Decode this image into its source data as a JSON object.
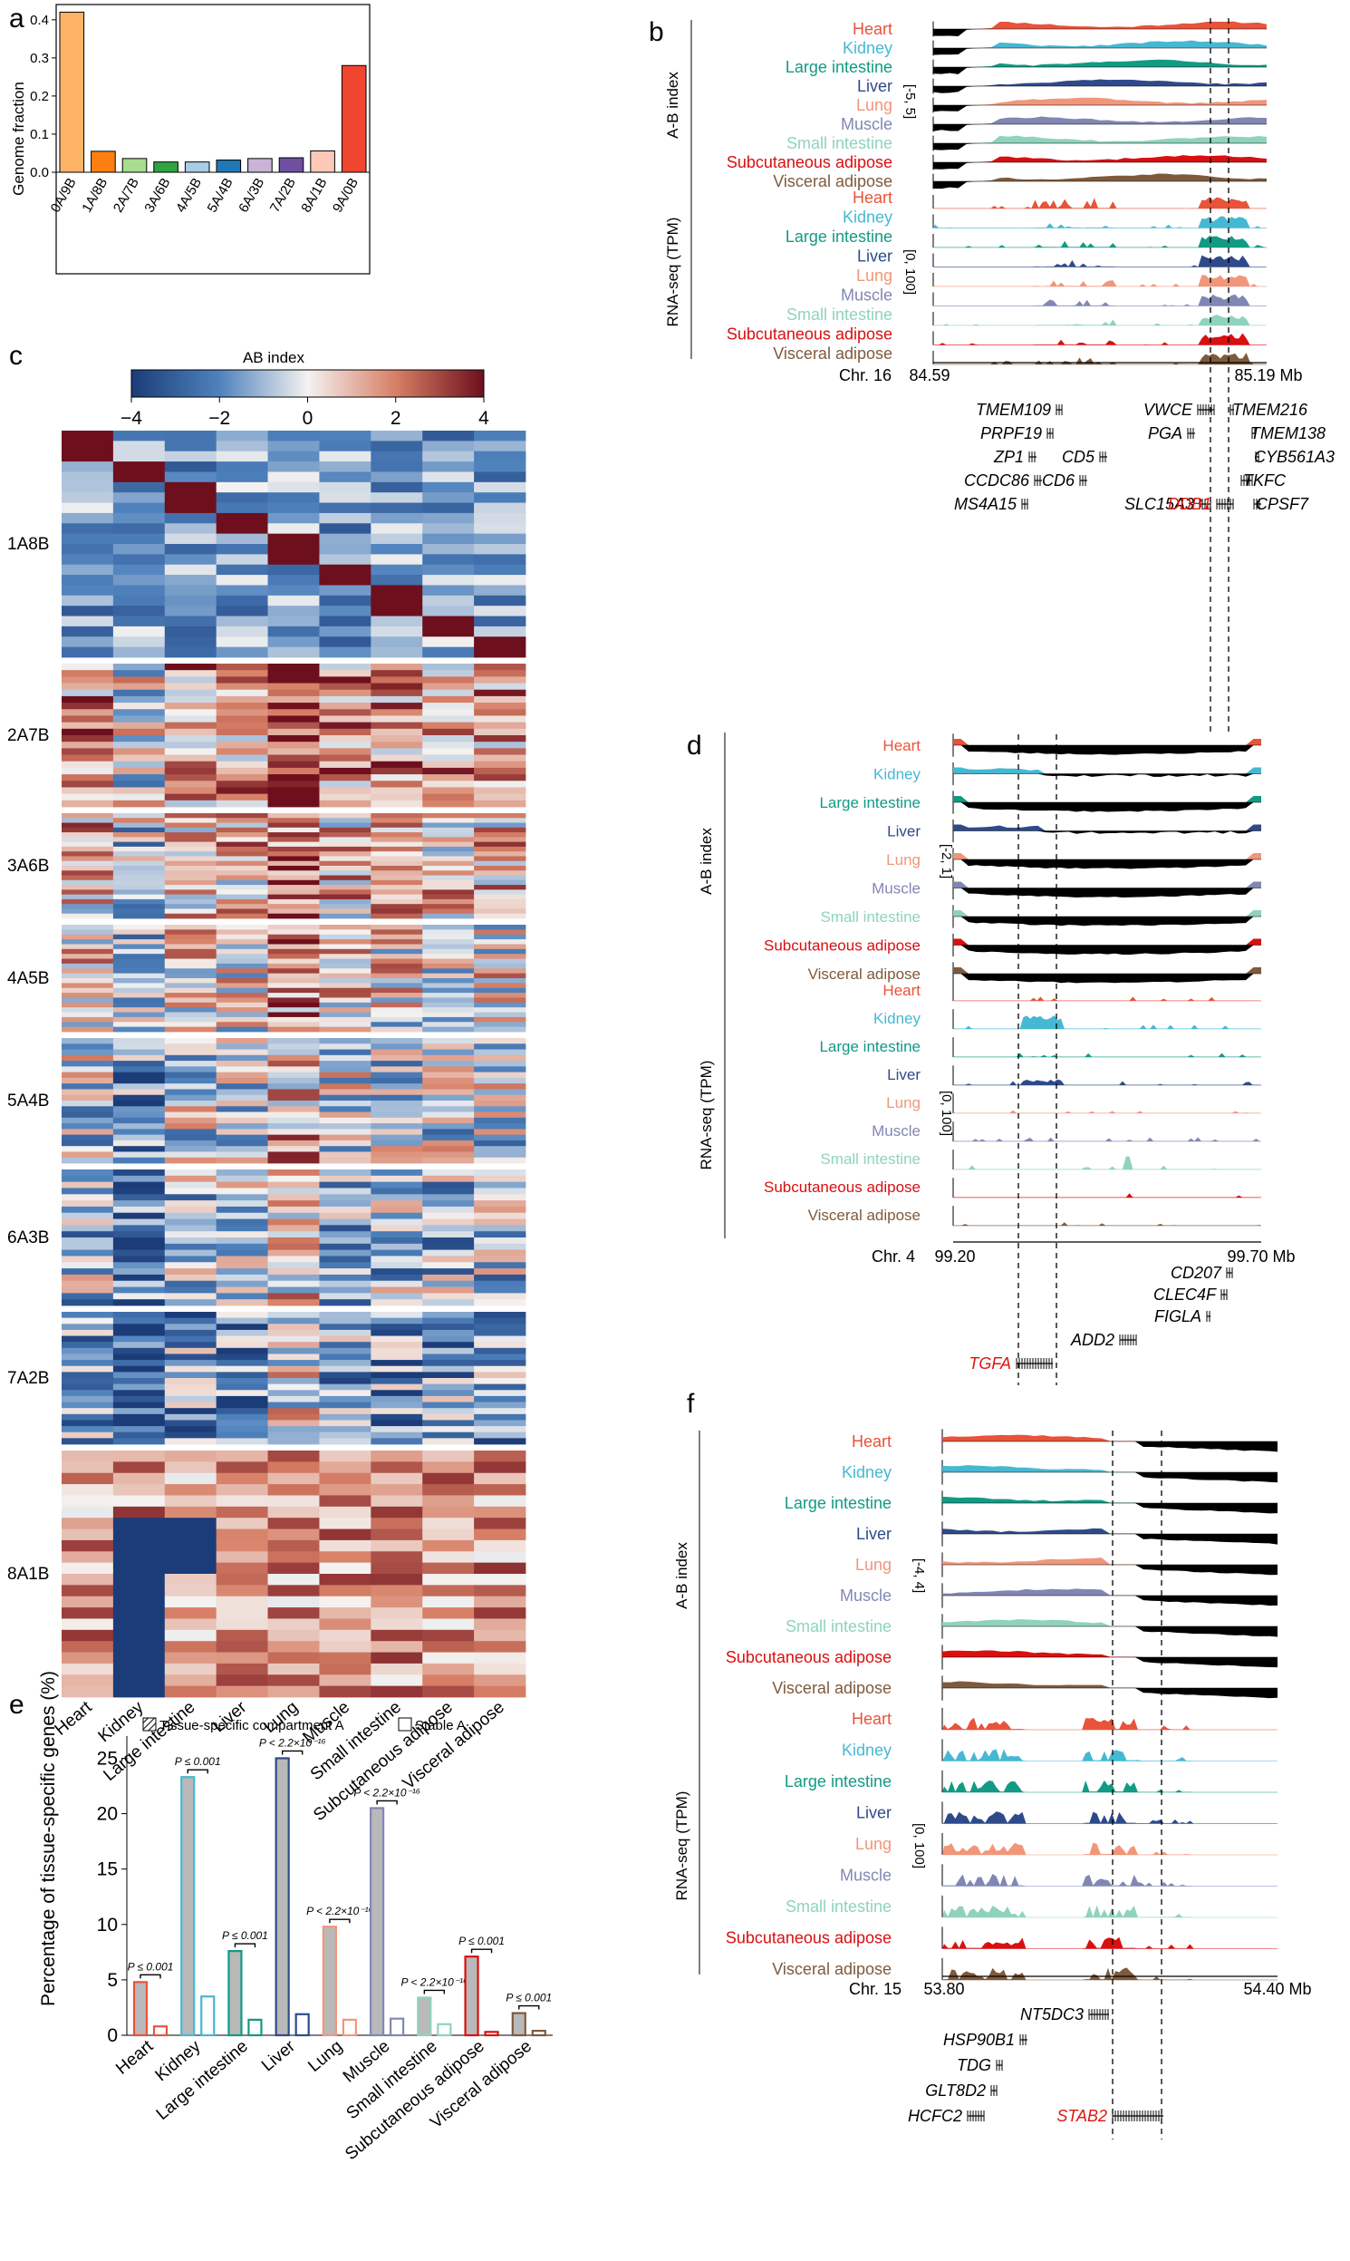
{
  "panel_labels": [
    "a",
    "b",
    "c",
    "d",
    "e",
    "f"
  ],
  "tissues": [
    "Heart",
    "Kidney",
    "Large intestine",
    "Liver",
    "Lung",
    "Muscle",
    "Small intestine",
    "Subcutaneous adipose",
    "Visceral adipose"
  ],
  "tissue_colors": {
    "Heart": "#e8533a",
    "Kidney": "#45b8d3",
    "Large intestine": "#129a84",
    "Liver": "#2e4a8a",
    "Lung": "#f1967a",
    "Muscle": "#8187b4",
    "Small intestine": "#8fd3bd",
    "Subcutaneous adipose": "#d90f10",
    "Visceral adipose": "#7e5a3c"
  },
  "chart_data": [
    {
      "id": "a",
      "type": "bar",
      "title": "",
      "xlabel": "",
      "ylabel": "Genome fraction",
      "ylim": [
        0,
        0.44
      ],
      "yticks": [
        "0.0",
        "0.1",
        "0.2",
        "0.3",
        "0.4"
      ],
      "categories": [
        "0A/9B",
        "1A/8B",
        "2A/7B",
        "3A/6B",
        "4A/5B",
        "5A/4B",
        "6A/3B",
        "7A/2B",
        "8A/1B",
        "9A/0B"
      ],
      "values": [
        0.42,
        0.055,
        0.036,
        0.027,
        0.027,
        0.032,
        0.036,
        0.038,
        0.056,
        0.28
      ],
      "colors": [
        "#fdb366",
        "#fd7f11",
        "#a8dc8f",
        "#2fa541",
        "#a9cce4",
        "#2178b5",
        "#c9b3d6",
        "#6f4fa0",
        "#fcc8b8",
        "#f0452f"
      ]
    },
    {
      "id": "b",
      "type": "area",
      "chromosome": "Chr. 16",
      "x_start": "84.59",
      "x_end": "85.19 Mb",
      "ab_ylabel": "A-B index",
      "ab_range": "[-5, 5]",
      "rna_ylabel": "RNA-seq (TPM)",
      "rna_range": "[0, 100]",
      "genes": [
        {
          "name": "TMEM109",
          "highlight": false
        },
        {
          "name": "PRPF19",
          "highlight": false
        },
        {
          "name": "ZP1",
          "highlight": false
        },
        {
          "name": "CCDC86",
          "highlight": false
        },
        {
          "name": "MS4A15",
          "highlight": false
        },
        {
          "name": "CD5",
          "highlight": false
        },
        {
          "name": "CD6",
          "highlight": false
        },
        {
          "name": "SLC15A3",
          "highlight": false
        },
        {
          "name": "VWCE",
          "highlight": false
        },
        {
          "name": "PGA",
          "highlight": false
        },
        {
          "name": "DDB1",
          "highlight": true
        },
        {
          "name": "TMEM216",
          "highlight": false
        },
        {
          "name": "TMEM138",
          "highlight": false
        },
        {
          "name": "CYB561A3",
          "highlight": false
        },
        {
          "name": "TKFC",
          "highlight": false
        },
        {
          "name": "CPSF7",
          "highlight": false
        }
      ]
    },
    {
      "id": "c",
      "type": "heatmap",
      "title": "AB index",
      "colorbar_range": [
        -4,
        4
      ],
      "colorbar_ticks": [
        "−4",
        "−2",
        "0",
        "2",
        "4"
      ],
      "columns": [
        "Heart",
        "Kidney",
        "Large intestine",
        "Liver",
        "Lung",
        "Muscle",
        "Small intestine",
        "Subcutaneous adipose",
        "Visceral adipose"
      ],
      "row_groups": [
        "1A8B",
        "2A7B",
        "3A6B",
        "4A5B",
        "5A4B",
        "6A3B",
        "7A2B",
        "8A1B"
      ]
    },
    {
      "id": "d",
      "type": "area",
      "chromosome": "Chr. 4",
      "x_start": "99.20",
      "x_end": "99.70 Mb",
      "ab_ylabel": "A-B index",
      "ab_range": "[-2, 1]",
      "rna_ylabel": "RNA-seq (TPM)",
      "rna_range": "[0, 100]",
      "genes": [
        {
          "name": "CD207",
          "highlight": false
        },
        {
          "name": "CLEC4F",
          "highlight": false
        },
        {
          "name": "FIGLA",
          "highlight": false
        },
        {
          "name": "ADD2",
          "highlight": false
        },
        {
          "name": "TGFA",
          "highlight": true
        }
      ]
    },
    {
      "id": "e",
      "type": "bar",
      "ylabel": "Percentage of tissue-specific genes (%)",
      "ylim": [
        0,
        27
      ],
      "yticks": [
        "0",
        "5",
        "10",
        "15",
        "20",
        "25"
      ],
      "legend": [
        "Tissue-specific compartment A",
        "Stable A"
      ],
      "categories": [
        "Heart",
        "Kidney",
        "Large intestine",
        "Liver",
        "Lung",
        "Muscle",
        "Small intestine",
        "Subcutaneous adipose",
        "Visceral adipose"
      ],
      "series": [
        {
          "name": "Tissue-specific compartment A",
          "values": [
            4.8,
            23.3,
            7.6,
            25.0,
            9.8,
            20.5,
            3.4,
            7.1,
            2.0
          ]
        },
        {
          "name": "Stable A",
          "values": [
            0.8,
            3.5,
            1.4,
            1.9,
            1.4,
            1.5,
            1.0,
            0.3,
            0.4
          ]
        }
      ],
      "pvalues": [
        "P ≤ 0.001",
        "P ≤ 0.001",
        "P ≤ 0.001",
        "P < 2.2×10⁻¹⁶",
        "P < 2.2×10⁻¹⁶",
        "P < 2.2×10⁻¹⁶",
        "P < 2.2×10⁻¹⁶",
        "P ≤ 0.001",
        "P ≤ 0.001"
      ]
    },
    {
      "id": "f",
      "type": "area",
      "chromosome": "Chr. 15",
      "x_start": "53.80",
      "x_end": "54.40 Mb",
      "ab_ylabel": "A-B index",
      "ab_range": "[-4, 4]",
      "rna_ylabel": "RNA-seq (TPM)",
      "rna_range": "[0, 100]",
      "genes": [
        {
          "name": "NT5DC3",
          "highlight": false
        },
        {
          "name": "HSP90B1",
          "highlight": false
        },
        {
          "name": "TDG",
          "highlight": false
        },
        {
          "name": "GLT8D2",
          "highlight": false
        },
        {
          "name": "HCFC2",
          "highlight": false
        },
        {
          "name": "STAB2",
          "highlight": true
        }
      ]
    }
  ]
}
